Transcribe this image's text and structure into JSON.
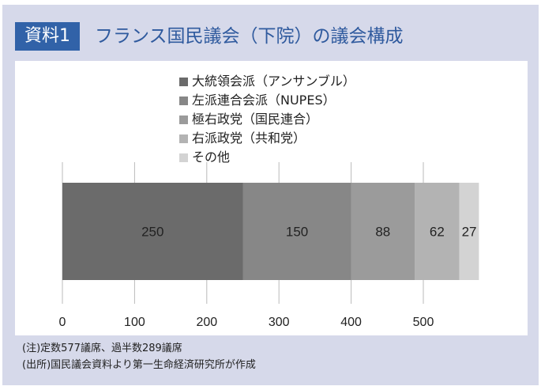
{
  "header": {
    "badge": "資料1",
    "title": "フランス国民議会（下院）の議会構成"
  },
  "chart_data": {
    "type": "bar",
    "orientation": "horizontal-stacked",
    "series": [
      {
        "name": "大統領会派（アンサンブル）",
        "values": [
          250
        ],
        "color": "#6b6b6b"
      },
      {
        "name": "左派連合会派（NUPES）",
        "values": [
          150
        ],
        "color": "#878787"
      },
      {
        "name": "極右政党（国民連合）",
        "values": [
          88
        ],
        "color": "#9b9b9b"
      },
      {
        "name": "右派政党（共和党）",
        "values": [
          62
        ],
        "color": "#b3b3b3"
      },
      {
        "name": "その他",
        "values": [
          27
        ],
        "color": "#d3d3d3"
      }
    ],
    "data_labels": [
      "250",
      "150",
      "88",
      "62",
      "27"
    ],
    "xlim": [
      0,
      577
    ],
    "xticks": [
      0,
      100,
      200,
      300,
      400,
      500
    ],
    "xtick_labels": [
      "0",
      "100",
      "200",
      "300",
      "400",
      "500"
    ],
    "grid": "vertical",
    "legend": "top"
  },
  "notes": [
    "(注)定数577議席、過半数289議席",
    "(出所)国民議会資料より第一生命経済研究所が作成"
  ]
}
